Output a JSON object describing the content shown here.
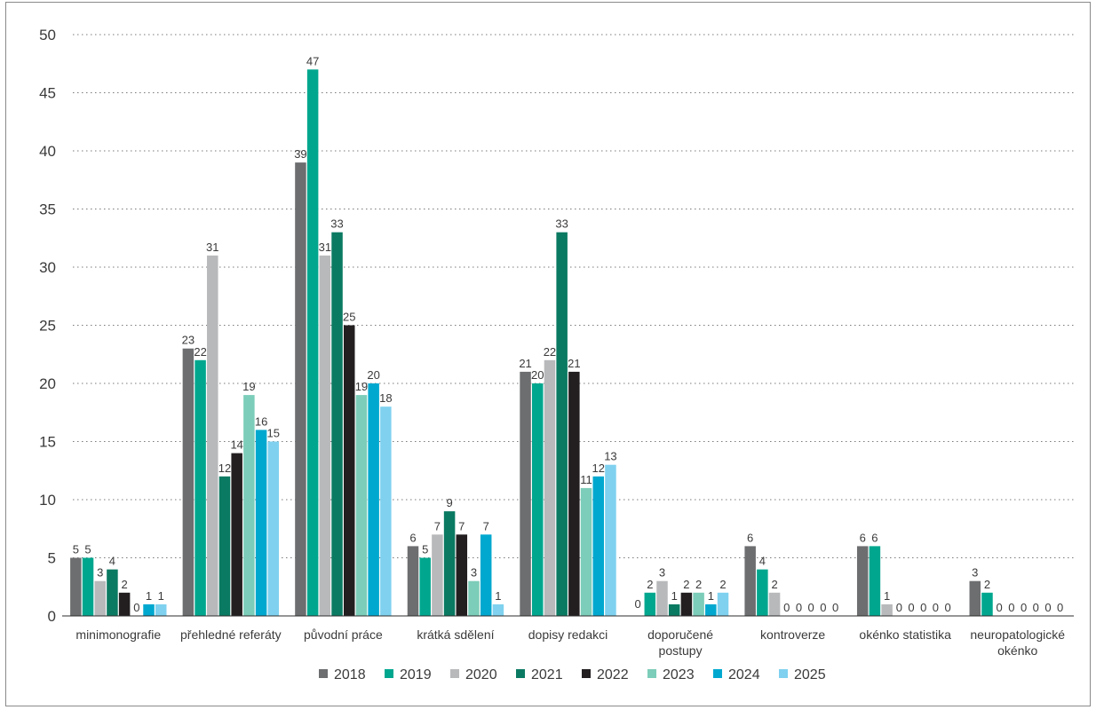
{
  "chart_data": {
    "type": "bar",
    "title": "",
    "xlabel": "",
    "ylabel": "",
    "ylim": [
      0,
      50
    ],
    "yticks": [
      0,
      5,
      10,
      15,
      20,
      25,
      30,
      35,
      40,
      45,
      50
    ],
    "grid": "horizontal dotted",
    "legend_position": "bottom",
    "categories": [
      [
        "minimonografie"
      ],
      [
        "přehledné referáty"
      ],
      [
        "původní práce"
      ],
      [
        "krátká sdělení"
      ],
      [
        "dopisy redakci"
      ],
      [
        "doporučené",
        "postupy"
      ],
      [
        "kontroverze"
      ],
      [
        "okénko statistika"
      ],
      [
        "neuropatologické",
        "okénko"
      ]
    ],
    "series": [
      {
        "name": "2018",
        "color": "#6d6e70",
        "values": [
          5,
          23,
          39,
          6,
          21,
          null,
          6,
          6,
          3
        ]
      },
      {
        "name": "2019",
        "color": "#00a78e",
        "values": [
          5,
          22,
          47,
          5,
          20,
          2,
          4,
          6,
          2
        ]
      },
      {
        "name": "2020",
        "color": "#b8b9bb",
        "values": [
          3,
          31,
          31,
          7,
          22,
          3,
          2,
          1,
          0
        ]
      },
      {
        "name": "2021",
        "color": "#0b7a62",
        "values": [
          4,
          12,
          33,
          9,
          33,
          1,
          0,
          0,
          0
        ]
      },
      {
        "name": "2022",
        "color": "#231f20",
        "values": [
          2,
          14,
          25,
          7,
          21,
          2,
          0,
          0,
          0
        ]
      },
      {
        "name": "2023",
        "color": "#7ccdb9",
        "values": [
          0,
          19,
          19,
          3,
          11,
          2,
          0,
          0,
          0
        ]
      },
      {
        "name": "2024",
        "color": "#00a8cf",
        "values": [
          1,
          16,
          20,
          7,
          12,
          1,
          0,
          0,
          0
        ]
      },
      {
        "name": "2025",
        "color": "#7fd1ef",
        "values": [
          1,
          15,
          18,
          1,
          13,
          2,
          0,
          0,
          0
        ]
      }
    ],
    "extra_labels": [
      {
        "category": 5,
        "text": "0"
      }
    ]
  }
}
